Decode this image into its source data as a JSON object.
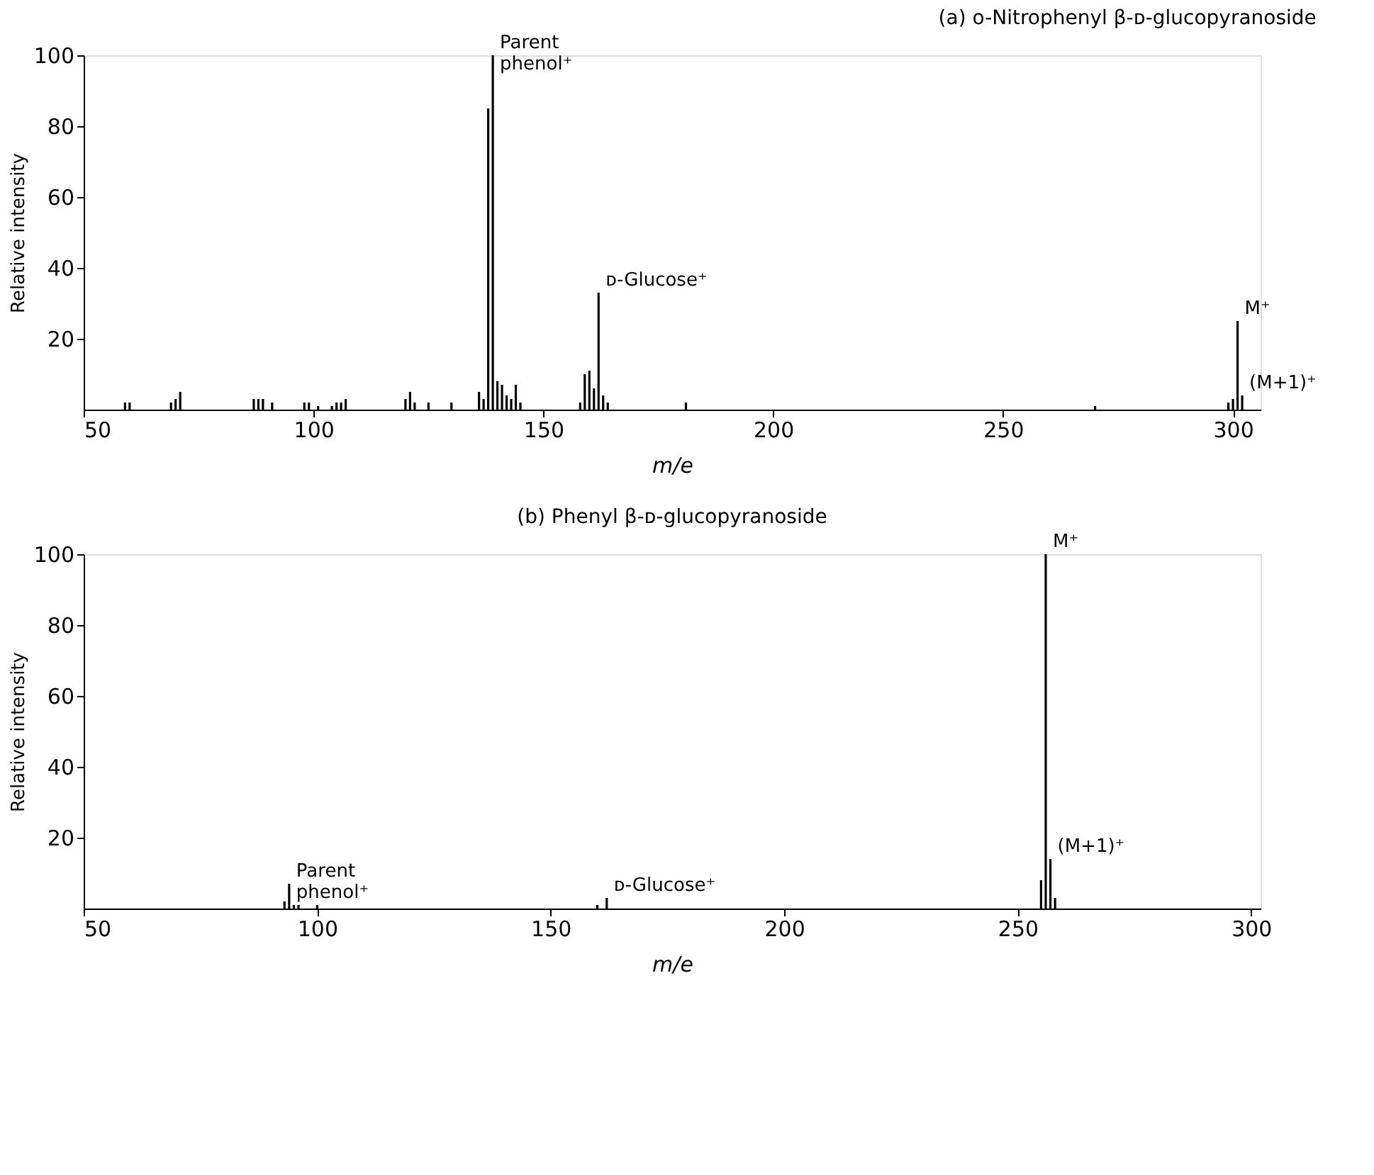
{
  "chart_data": [
    {
      "type": "bar",
      "title": "(a) o-Nitrophenyl β-ᴅ-glucopyranoside",
      "xlabel": "m/e",
      "ylabel": "Relative intensity",
      "color": "#000000",
      "x": [
        59,
        60,
        69,
        70,
        71,
        87,
        88,
        89,
        91,
        98,
        99,
        101,
        104,
        105,
        106,
        107,
        120,
        121,
        122,
        125,
        130,
        136,
        137,
        138,
        139,
        140,
        141,
        142,
        143,
        144,
        145,
        158,
        159,
        160,
        161,
        162,
        163,
        164,
        181,
        270,
        299,
        300,
        301,
        302
      ],
      "values": [
        2,
        2,
        2,
        3,
        5,
        3,
        3,
        3,
        2,
        2,
        2,
        1,
        1,
        2,
        2,
        3,
        3,
        5,
        2,
        2,
        2,
        5,
        3,
        85,
        100,
        8,
        7,
        4,
        3,
        7,
        2,
        2,
        10,
        11,
        6,
        33,
        4,
        2,
        2,
        1,
        2,
        3,
        25,
        4
      ],
      "xlim": [
        50,
        306
      ],
      "xticks": [
        50,
        100,
        150,
        200,
        250,
        300
      ],
      "ylim": [
        0,
        100
      ],
      "yticks": [
        20,
        40,
        60,
        80,
        100
      ],
      "annotations": [
        {
          "text": "Parent\nphenol⁺",
          "x": 139,
          "y": 100
        },
        {
          "text": "ᴅ-Glucose⁺",
          "x": 162,
          "y": 33
        },
        {
          "text": "M⁺",
          "x": 301,
          "y": 25
        },
        {
          "text": "(M+1)⁺",
          "x": 302,
          "y": 4
        }
      ]
    },
    {
      "type": "bar",
      "title": "(b) Phenyl β-ᴅ-glucopyranoside",
      "xlabel": "m/e",
      "ylabel": "Relative intensity",
      "color": "#000000",
      "x": [
        93,
        94,
        95,
        96,
        100,
        160,
        162,
        255,
        256,
        257,
        258
      ],
      "values": [
        2,
        7,
        1,
        1,
        1,
        1,
        3,
        8,
        100,
        14,
        3
      ],
      "xlim": [
        50,
        302
      ],
      "xticks": [
        50,
        100,
        150,
        200,
        250,
        300
      ],
      "ylim": [
        0,
        100
      ],
      "yticks": [
        20,
        40,
        60,
        80,
        100
      ],
      "annotations": [
        {
          "text": "Parent\nphenol⁺",
          "x": 94,
          "y": 7
        },
        {
          "text": "ᴅ-Glucose⁺",
          "x": 162,
          "y": 3
        },
        {
          "text": "M⁺",
          "x": 256,
          "y": 100
        },
        {
          "text": "(M+1)⁺",
          "x": 257,
          "y": 14
        }
      ]
    }
  ]
}
